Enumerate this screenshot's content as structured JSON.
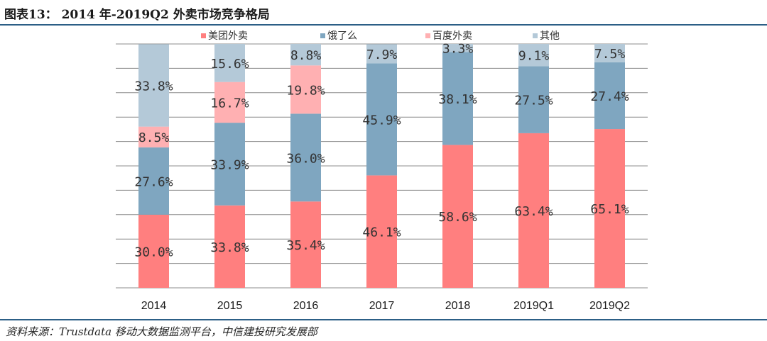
{
  "header": {
    "title": "图表13：  2014 年-2019Q2 外卖市场竞争格局"
  },
  "footer": {
    "source": "资料来源：Trustdata 移动大数据监测平台，中信建投研究发展部"
  },
  "chart_data": {
    "type": "bar",
    "stacked": true,
    "categories": [
      "2014",
      "2015",
      "2016",
      "2017",
      "2018",
      "2019Q1",
      "2019Q2"
    ],
    "ylim": [
      0,
      100
    ],
    "grid": true,
    "legend_position": "top",
    "series": [
      {
        "name": "美团外卖",
        "color": "#ff7f7f",
        "values": [
          30.0,
          33.8,
          35.4,
          46.1,
          58.6,
          63.4,
          65.1
        ],
        "labels": [
          "30.0%",
          "33.8%",
          "35.4%",
          "46.1%",
          "58.6%",
          "63.4%",
          "65.1%"
        ]
      },
      {
        "name": "饿了么",
        "color": "#7fa6c0",
        "values": [
          27.6,
          33.9,
          36.0,
          45.9,
          38.1,
          27.5,
          27.4
        ],
        "labels": [
          "27.6%",
          "33.9%",
          "36.0%",
          "45.9%",
          "38.1%",
          "27.5%",
          "27.4%"
        ]
      },
      {
        "name": "百度外卖",
        "color": "#ffb0b2",
        "values": [
          8.5,
          16.7,
          19.8,
          0,
          0,
          0,
          0
        ],
        "labels": [
          "8.5%",
          "16.7%",
          "19.8%",
          "",
          "",
          "",
          ""
        ]
      },
      {
        "name": "其他",
        "color": "#b4c9d8",
        "values": [
          33.8,
          15.6,
          8.8,
          7.9,
          3.3,
          9.1,
          7.5
        ],
        "labels": [
          "33.8%",
          "15.6%",
          "8.8%",
          "7.9%",
          "3.3%",
          "9.1%",
          "7.5%"
        ]
      }
    ]
  }
}
